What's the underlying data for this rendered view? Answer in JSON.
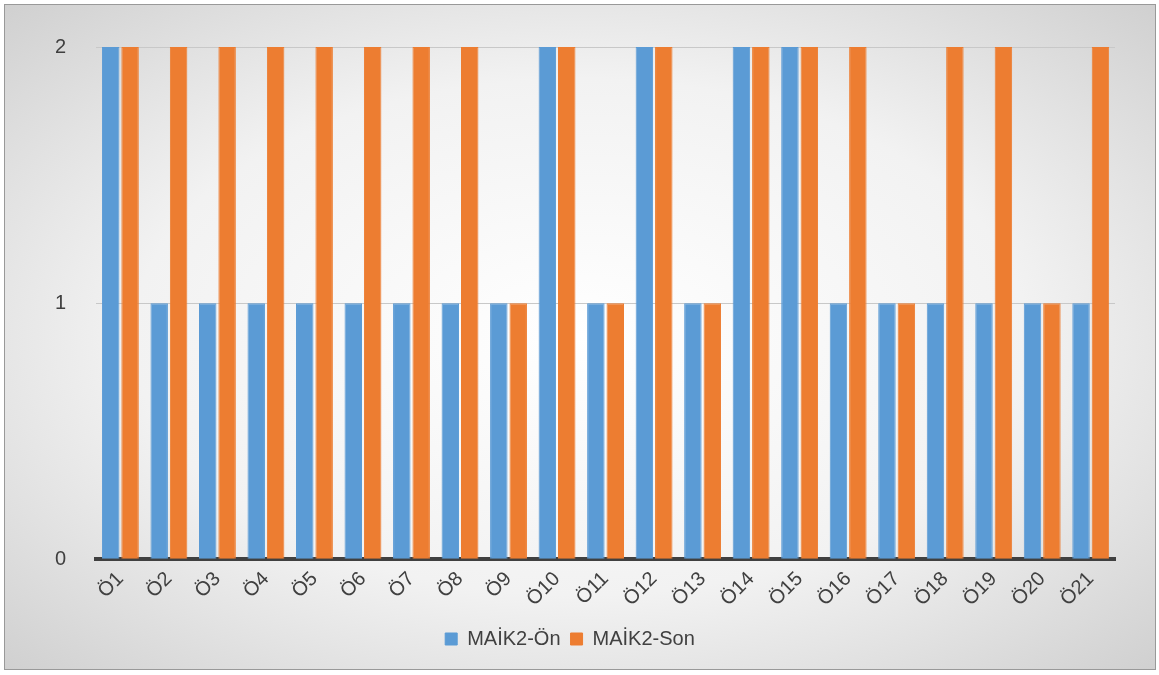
{
  "chart_data": {
    "type": "bar",
    "categories": [
      "Ö1",
      "Ö2",
      "Ö3",
      "Ö4",
      "Ö5",
      "Ö6",
      "Ö7",
      "Ö8",
      "Ö9",
      "Ö10",
      "Ö11",
      "Ö12",
      "Ö13",
      "Ö14",
      "Ö15",
      "Ö16",
      "Ö17",
      "Ö18",
      "Ö19",
      "Ö20",
      "Ö21"
    ],
    "series": [
      {
        "name": "MAİK2-Ön",
        "color": "#5b9bd5",
        "values": [
          2,
          1,
          1,
          1,
          1,
          1,
          1,
          1,
          1,
          2,
          1,
          2,
          1,
          2,
          2,
          1,
          1,
          1,
          1,
          1,
          1
        ]
      },
      {
        "name": "MAİK2-Son",
        "color": "#ed7d31",
        "values": [
          2,
          2,
          2,
          2,
          2,
          2,
          2,
          2,
          1,
          2,
          1,
          2,
          1,
          2,
          2,
          2,
          1,
          2,
          2,
          1,
          2
        ]
      }
    ],
    "ylim": [
      0,
      2
    ],
    "yticks": [
      0,
      1,
      2
    ],
    "grid": "y",
    "legend": "bottom"
  }
}
